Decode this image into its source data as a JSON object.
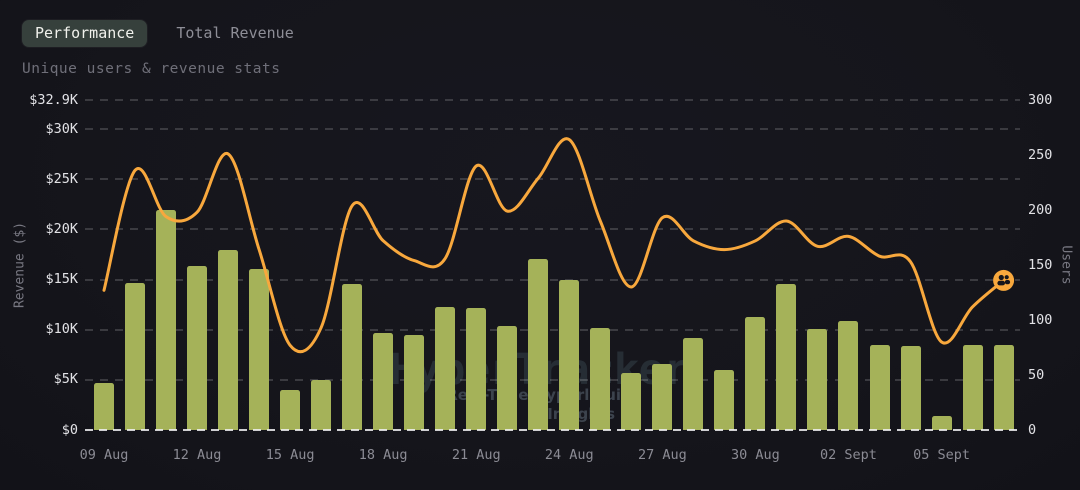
{
  "tabs": [
    {
      "label": "Performance",
      "active": true
    },
    {
      "label": "Total Revenue",
      "active": false
    }
  ],
  "subtitle": "Unique users & revenue stats",
  "watermark": {
    "title": "HyperTracker",
    "subtitle_line1": "Real-Time Hyperliquid",
    "subtitle_line2": "Insights by"
  },
  "colors": {
    "background": "#15151b",
    "bar": "#a5b259",
    "line": "#f8a83d",
    "active_tab_bg": "#36403c",
    "tick_label": "#e2e2e6",
    "x_label": "#8b8b94"
  },
  "end_marker": {
    "icon": "users-icon",
    "series": "Users"
  },
  "chart_data": {
    "type": "bar+line",
    "title": "Unique users & revenue stats",
    "grid": "dashed-horizontal",
    "legend": "off",
    "categories": [
      "09 Aug",
      "10 Aug",
      "11 Aug",
      "12 Aug",
      "13 Aug",
      "14 Aug",
      "15 Aug",
      "16 Aug",
      "17 Aug",
      "18 Aug",
      "19 Aug",
      "20 Aug",
      "21 Aug",
      "22 Aug",
      "23 Aug",
      "24 Aug",
      "25 Aug",
      "26 Aug",
      "27 Aug",
      "28 Aug",
      "29 Aug",
      "30 Aug",
      "31 Aug",
      "01 Sept",
      "02 Sept",
      "03 Sept",
      "04 Sept",
      "05 Sept",
      "06 Sept",
      "07 Sept"
    ],
    "series": [
      {
        "name": "Revenue ($)",
        "type": "bar",
        "axis": "left",
        "color": "#a5b259",
        "values": [
          4700,
          14700,
          21900,
          16400,
          17900,
          16100,
          4000,
          5000,
          14600,
          9700,
          9500,
          12300,
          12200,
          10400,
          17000,
          15000,
          10200,
          5700,
          6600,
          9200,
          6000,
          11300,
          14600,
          10100,
          10900,
          8500,
          8400,
          1400,
          8500,
          8500
        ]
      },
      {
        "name": "Users",
        "type": "line",
        "axis": "right",
        "color": "#f8a83d",
        "values": [
          127,
          236,
          194,
          198,
          251,
          164,
          77,
          93,
          204,
          172,
          154,
          156,
          240,
          199,
          229,
          264,
          190,
          130,
          193,
          172,
          164,
          172,
          190,
          167,
          176,
          158,
          153,
          80,
          112,
          136
        ]
      }
    ],
    "left_axis": {
      "label": "Revenue ($)",
      "max": 32900,
      "ticks": [
        {
          "label": "$0",
          "value": 0
        },
        {
          "label": "$5K",
          "value": 5000
        },
        {
          "label": "$10K",
          "value": 10000
        },
        {
          "label": "$15K",
          "value": 15000
        },
        {
          "label": "$20K",
          "value": 20000
        },
        {
          "label": "$25K",
          "value": 25000
        },
        {
          "label": "$30K",
          "value": 30000
        },
        {
          "label": "$32.9K",
          "value": 32900
        }
      ]
    },
    "right_axis": {
      "label": "Users",
      "max": 300,
      "ticks": [
        {
          "label": "0",
          "value": 0
        },
        {
          "label": "50",
          "value": 50
        },
        {
          "label": "100",
          "value": 100
        },
        {
          "label": "150",
          "value": 150
        },
        {
          "label": "200",
          "value": 200
        },
        {
          "label": "250",
          "value": 250
        },
        {
          "label": "300",
          "value": 300
        }
      ]
    },
    "x_ticks": {
      "every": 3,
      "labels": [
        "09 Aug",
        "12 Aug",
        "15 Aug",
        "18 Aug",
        "21 Aug",
        "24 Aug",
        "27 Aug",
        "30 Aug",
        "02 Sept",
        "05 Sept"
      ]
    }
  }
}
